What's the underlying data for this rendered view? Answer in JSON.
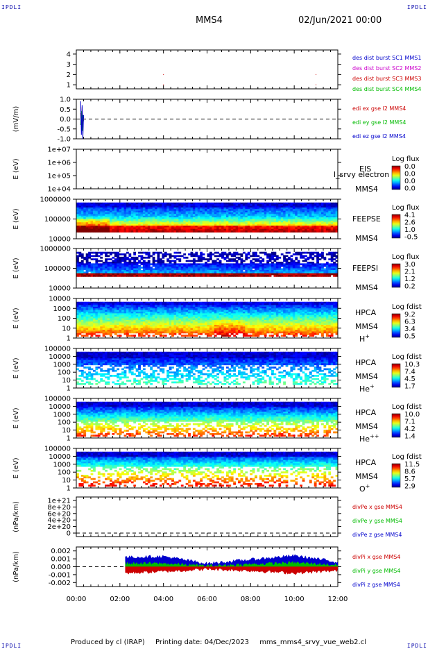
{
  "header": {
    "corner_label": "IPDLI",
    "title": "MMS4",
    "date": "02/Jun/2021 00:00"
  },
  "footer": {
    "produced_by": "Produced by cl (IRAP)",
    "printing_date": "Printing date: 04/Dec/2023",
    "filename": "mms_mms4_srvy_vue_web2.cl"
  },
  "colors": {
    "red": "#cc0000",
    "green": "#00bb00",
    "blue": "#0000cc",
    "magenta": "#cc00cc",
    "burst1": "#0000cc",
    "burst2": "#cc00cc",
    "burst3": "#cc0000",
    "burst4": "#00bb00"
  },
  "chart_data": [
    {
      "type": "scatter",
      "panel": "burst",
      "ylabel": "",
      "yticks": [
        "4",
        "3",
        "2",
        "1"
      ],
      "ylim": [
        0.6,
        4.4
      ],
      "legend": [
        "des dist burst SC1 MMS1",
        "des dist burst SC2 MMS2",
        "des dist burst SC3 MMS3",
        "des dist burst SC4 MMS4"
      ],
      "series": [
        {
          "name": "des dist burst SC3 MMS3",
          "x": [
            "04:00",
            "04:00",
            "11:00",
            "11:00"
          ],
          "y": [
            1,
            2,
            1,
            2
          ]
        }
      ]
    },
    {
      "type": "line",
      "panel": "edi",
      "ylabel": "(mV/m)",
      "yticks": [
        "1.0",
        "0.5",
        "0.0",
        "-0.5",
        "-1.0"
      ],
      "ylim": [
        -1.0,
        1.0
      ],
      "legend": [
        "edi ex gse l2 MMS4",
        "edi ey gse l2 MMS4",
        "edi ez gse l2 MMS4"
      ],
      "series": [
        {
          "name": "edi ex gse l2 MMS4",
          "x": [
            "00:12",
            "00:14",
            "00:16",
            "00:18",
            "00:20"
          ],
          "y": [
            0.3,
            -0.4,
            0.6,
            -0.5,
            0.1
          ]
        },
        {
          "name": "edi ey gse l2 MMS4",
          "x": [
            "00:12",
            "00:14",
            "00:16",
            "00:18",
            "00:20"
          ],
          "y": [
            -0.3,
            0.4,
            -0.6,
            0.2,
            -0.1
          ]
        },
        {
          "name": "edi ez gse l2 MMS4",
          "x": [
            "00:12",
            "00:14",
            "00:16",
            "00:18",
            "00:20"
          ],
          "y": [
            0.9,
            -0.8,
            0.7,
            -1.0,
            0.2
          ]
        }
      ]
    },
    {
      "type": "heatmap",
      "panel": "eis",
      "ylabel": "E (eV)",
      "yticks": [
        "1e+07",
        "1e+06",
        "1e+05",
        "1e+04"
      ],
      "instrument": "EIS",
      "instrument2": "l_srvy electron to",
      "spacecraft": "MMS4",
      "colorbar_title": "Log flux",
      "colorbar_ticks": [
        "0.0",
        "0.0",
        "0.0",
        "0.0"
      ]
    },
    {
      "type": "heatmap",
      "panel": "feepse",
      "ylabel": "E (eV)",
      "yticks": [
        "1000000",
        "100000",
        "10000"
      ],
      "instrument": "FEEPSE",
      "spacecraft": "MMS4",
      "colorbar_title": "Log flux",
      "colorbar_ticks": [
        "4.1",
        "2.6",
        "1.0",
        "-0.5"
      ]
    },
    {
      "type": "heatmap",
      "panel": "feepsi",
      "ylabel": "E (eV)",
      "yticks": [
        "1000000",
        "100000",
        "10000"
      ],
      "instrument": "FEEPSI",
      "spacecraft": "MMS4",
      "colorbar_title": "Log flux",
      "colorbar_ticks": [
        "3.0",
        "2.1",
        "1.2",
        "0.2"
      ]
    },
    {
      "type": "heatmap",
      "panel": "hpca_h",
      "ylabel": "E (eV)",
      "yticks": [
        "10000",
        "1000",
        "100",
        "10",
        "1"
      ],
      "instrument": "HPCA",
      "spacecraft": "MMS4",
      "species": "H",
      "charge": "+",
      "colorbar_title": "Log fdist",
      "colorbar_ticks": [
        "9.2",
        "6.3",
        "3.4",
        "0.5"
      ]
    },
    {
      "type": "heatmap",
      "panel": "hpca_he",
      "ylabel": "E (eV)",
      "yticks": [
        "100000",
        "10000",
        "1000",
        "100",
        "10",
        "1"
      ],
      "instrument": "HPCA",
      "spacecraft": "MMS4",
      "species": "He",
      "charge": "+",
      "colorbar_title": "Log fdist",
      "colorbar_ticks": [
        "10.3",
        "7.4",
        "4.5",
        "1.7"
      ]
    },
    {
      "type": "heatmap",
      "panel": "hpca_he2",
      "ylabel": "E (eV)",
      "yticks": [
        "100000",
        "10000",
        "1000",
        "100",
        "10",
        "1"
      ],
      "instrument": "HPCA",
      "spacecraft": "MMS4",
      "species": "He",
      "charge": "++",
      "colorbar_title": "Log fdist",
      "colorbar_ticks": [
        "10.0",
        "7.1",
        "4.2",
        "1.4"
      ]
    },
    {
      "type": "heatmap",
      "panel": "hpca_o",
      "ylabel": "E (eV)",
      "yticks": [
        "100000",
        "10000",
        "1000",
        "100",
        "10",
        "1"
      ],
      "instrument": "HPCA",
      "spacecraft": "MMS4",
      "species": "O",
      "charge": "+",
      "colorbar_title": "Log fdist",
      "colorbar_ticks": [
        "11.5",
        "8.6",
        "5.7",
        "2.9"
      ]
    },
    {
      "type": "line",
      "panel": "divpe",
      "ylabel": "(nPa/km)",
      "yticks": [
        "1e+21",
        "8e+20",
        "6e+20",
        "4e+20",
        "2e+20",
        "0"
      ],
      "ylim": [
        0,
        1e+21
      ],
      "legend": [
        "divPe x gse MMS4",
        "divPe y gse MMS4",
        "divPe z gse MMS4"
      ],
      "series": []
    },
    {
      "type": "line",
      "panel": "divpi",
      "ylabel": "(nPa/km)",
      "yticks": [
        "0.002",
        "0.001",
        "0.000",
        "-0.001",
        "-0.002"
      ],
      "ylim": [
        -0.0025,
        0.0025
      ],
      "legend": [
        "divPi x gse MMS4",
        "divPi y gse MMS4",
        "divPi z gse MMS4"
      ],
      "series": [
        {
          "name": "divPi x gse MMS4",
          "x": [
            "02:15",
            "04:00",
            "06:00",
            "08:00",
            "10:00",
            "12:00"
          ],
          "y": [
            -0.0008,
            -0.0006,
            -0.0003,
            -0.0005,
            -0.0008,
            -0.0005
          ]
        },
        {
          "name": "divPi y gse MMS4",
          "x": [
            "02:15",
            "04:00",
            "06:00",
            "08:00",
            "10:00",
            "12:00"
          ],
          "y": [
            0.0004,
            0.0004,
            0.0001,
            0.0003,
            0.0005,
            0.0002
          ]
        },
        {
          "name": "divPi z gse MMS4",
          "x": [
            "02:15",
            "04:00",
            "06:00",
            "08:00",
            "10:00",
            "12:00"
          ],
          "y": [
            0.0012,
            0.0013,
            0.0004,
            0.0009,
            0.0014,
            0.0006
          ]
        }
      ]
    }
  ],
  "xaxis": {
    "ticks": [
      "00:00",
      "02:00",
      "04:00",
      "06:00",
      "08:00",
      "10:00",
      "12:00"
    ]
  }
}
